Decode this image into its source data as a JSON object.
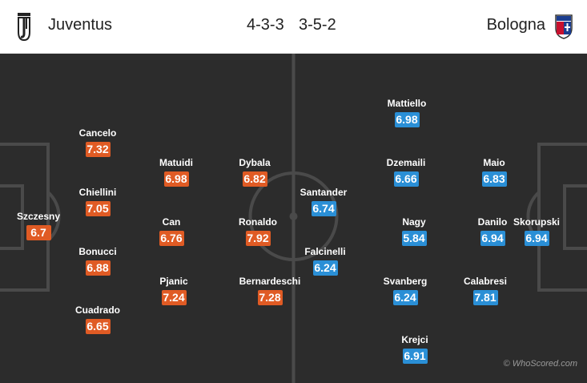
{
  "header": {
    "home_team": "Juventus",
    "home_formation": "4-3-3",
    "away_formation": "3-5-2",
    "away_team": "Bologna",
    "home_logo_icon": "juventus-crest-icon",
    "away_logo_icon": "bologna-crest-icon"
  },
  "colors": {
    "home_rating": "#e05b24",
    "away_rating": "#2a8fd6",
    "pitch": "#2c2c2c",
    "lines": "#4a4a4a"
  },
  "home_players": [
    {
      "name": "Szczesny",
      "rating": "6.7"
    },
    {
      "name": "Cancelo",
      "rating": "7.32"
    },
    {
      "name": "Chiellini",
      "rating": "7.05"
    },
    {
      "name": "Bonucci",
      "rating": "6.88"
    },
    {
      "name": "Cuadrado",
      "rating": "6.65"
    },
    {
      "name": "Matuidi",
      "rating": "6.98"
    },
    {
      "name": "Can",
      "rating": "6.76"
    },
    {
      "name": "Pjanic",
      "rating": "7.24"
    },
    {
      "name": "Dybala",
      "rating": "6.82"
    },
    {
      "name": "Ronaldo",
      "rating": "7.92"
    },
    {
      "name": "Bernardeschi",
      "rating": "7.28"
    }
  ],
  "away_players": [
    {
      "name": "Santander",
      "rating": "6.74"
    },
    {
      "name": "Falcinelli",
      "rating": "6.24"
    },
    {
      "name": "Mattiello",
      "rating": "6.98"
    },
    {
      "name": "Dzemaili",
      "rating": "6.66"
    },
    {
      "name": "Nagy",
      "rating": "5.84"
    },
    {
      "name": "Svanberg",
      "rating": "6.24"
    },
    {
      "name": "Krejci",
      "rating": "6.91"
    },
    {
      "name": "Maio",
      "rating": "6.83"
    },
    {
      "name": "Danilo",
      "rating": "6.94"
    },
    {
      "name": "Calabresi",
      "rating": "7.81"
    },
    {
      "name": "Skorupski",
      "rating": "6.94"
    }
  ],
  "watermark": "© WhoScored.com"
}
